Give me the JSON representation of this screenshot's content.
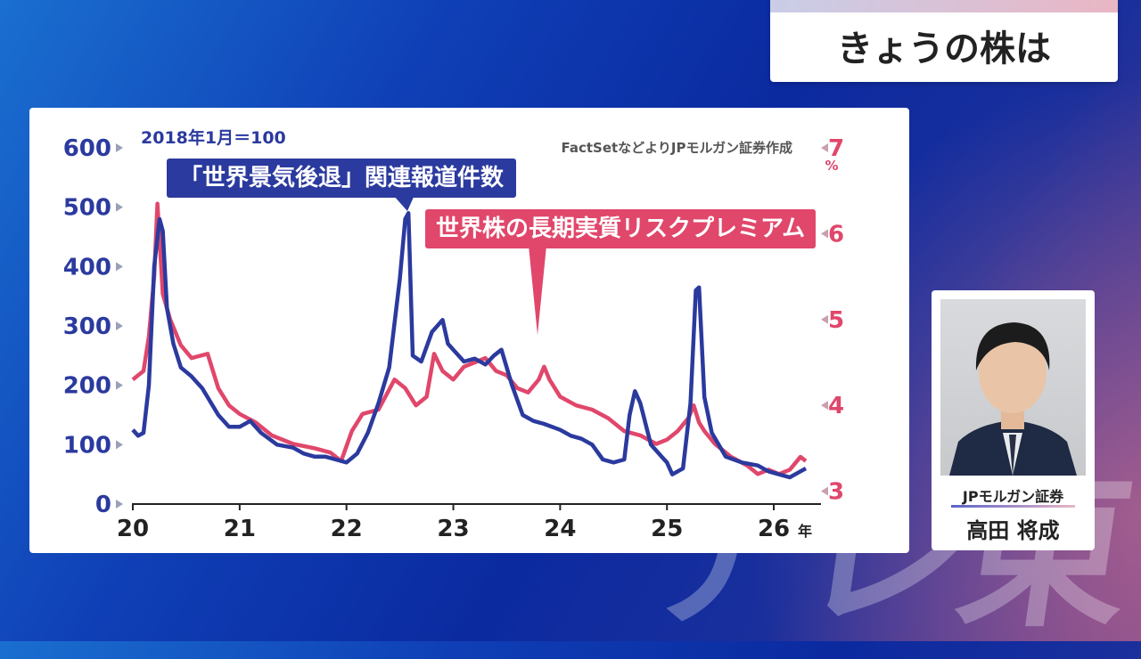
{
  "program_title": "きょうの株は",
  "watermark": "テレ東",
  "analyst": {
    "firm": "JPモルガン証券",
    "name": "高田 将成"
  },
  "chart_data": {
    "type": "line",
    "anchor_note": "2018年1月＝100",
    "source": "FactSetなどよりJPモルガン証券作成",
    "x_unit": "年",
    "x_ticks": [
      "20",
      "21",
      "22",
      "23",
      "24",
      "25",
      "26"
    ],
    "x_range": [
      2020.0,
      2026.35
    ],
    "left_axis": {
      "ticks": [
        "600",
        "500",
        "400",
        "300",
        "200",
        "100",
        "0"
      ],
      "range": [
        0,
        600
      ]
    },
    "right_axis": {
      "ticks": [
        "7",
        "6",
        "5",
        "4",
        "3"
      ],
      "unit": "%",
      "range": [
        2.85,
        7.0
      ]
    },
    "colors": {
      "news": "#2b3a9e",
      "premium": "#e0476b"
    },
    "series": [
      {
        "name": "「世界景気後退」関連報道件数",
        "axis": "left",
        "x": [
          2020.0,
          2020.05,
          2020.1,
          2020.15,
          2020.2,
          2020.25,
          2020.28,
          2020.32,
          2020.38,
          2020.45,
          2020.55,
          2020.65,
          2020.8,
          2020.9,
          2021.0,
          2021.1,
          2021.2,
          2021.35,
          2021.5,
          2021.6,
          2021.7,
          2021.8,
          2021.9,
          2022.0,
          2022.1,
          2022.2,
          2022.3,
          2022.4,
          2022.5,
          2022.55,
          2022.58,
          2022.62,
          2022.7,
          2022.8,
          2022.9,
          2022.95,
          2023.0,
          2023.1,
          2023.2,
          2023.3,
          2023.38,
          2023.45,
          2023.55,
          2023.65,
          2023.75,
          2023.85,
          2024.0,
          2024.1,
          2024.2,
          2024.3,
          2024.4,
          2024.5,
          2024.6,
          2024.65,
          2024.7,
          2024.75,
          2024.85,
          2024.95,
          2025.0,
          2025.05,
          2025.15,
          2025.22,
          2025.27,
          2025.3,
          2025.35,
          2025.42,
          2025.55,
          2025.7,
          2025.85,
          2025.95,
          2026.05,
          2026.15,
          2026.25,
          2026.3
        ],
        "values": [
          125,
          115,
          120,
          200,
          400,
          480,
          460,
          330,
          270,
          230,
          215,
          195,
          150,
          130,
          130,
          140,
          120,
          100,
          95,
          85,
          80,
          80,
          75,
          70,
          85,
          120,
          170,
          230,
          380,
          480,
          490,
          250,
          240,
          290,
          310,
          270,
          260,
          240,
          245,
          235,
          250,
          260,
          200,
          150,
          140,
          135,
          125,
          115,
          110,
          100,
          75,
          70,
          75,
          150,
          190,
          170,
          100,
          80,
          70,
          50,
          60,
          170,
          360,
          365,
          180,
          120,
          80,
          70,
          65,
          55,
          50,
          45,
          55,
          60
        ]
      },
      {
        "name": "世界株の長期実質リスクプレミアム",
        "axis": "right",
        "x": [
          2020.0,
          2020.05,
          2020.1,
          2020.15,
          2020.2,
          2020.23,
          2020.28,
          2020.35,
          2020.45,
          2020.55,
          2020.7,
          2020.8,
          2020.9,
          2021.0,
          2021.15,
          2021.3,
          2021.5,
          2021.7,
          2021.85,
          2021.95,
          2022.05,
          2022.15,
          2022.3,
          2022.45,
          2022.55,
          2022.65,
          2022.75,
          2022.82,
          2022.9,
          2023.0,
          2023.1,
          2023.2,
          2023.3,
          2023.4,
          2023.5,
          2023.6,
          2023.7,
          2023.8,
          2023.85,
          2023.9,
          2024.0,
          2024.15,
          2024.3,
          2024.45,
          2024.6,
          2024.75,
          2024.9,
          2025.0,
          2025.1,
          2025.2,
          2025.25,
          2025.3,
          2025.35,
          2025.45,
          2025.6,
          2025.75,
          2025.85,
          2025.95,
          2026.05,
          2026.15,
          2026.25,
          2026.3
        ],
        "values": [
          4.3,
          4.35,
          4.4,
          4.8,
          5.5,
          6.35,
          5.3,
          5.0,
          4.7,
          4.55,
          4.6,
          4.2,
          4.0,
          3.9,
          3.8,
          3.65,
          3.55,
          3.5,
          3.45,
          3.35,
          3.7,
          3.9,
          3.95,
          4.3,
          4.2,
          4.0,
          4.1,
          4.6,
          4.4,
          4.3,
          4.45,
          4.5,
          4.55,
          4.4,
          4.35,
          4.2,
          4.15,
          4.3,
          4.45,
          4.3,
          4.1,
          4.0,
          3.95,
          3.85,
          3.7,
          3.65,
          3.55,
          3.6,
          3.7,
          3.85,
          4.0,
          3.8,
          3.7,
          3.55,
          3.4,
          3.3,
          3.2,
          3.25,
          3.2,
          3.25,
          3.4,
          3.35
        ]
      }
    ]
  }
}
